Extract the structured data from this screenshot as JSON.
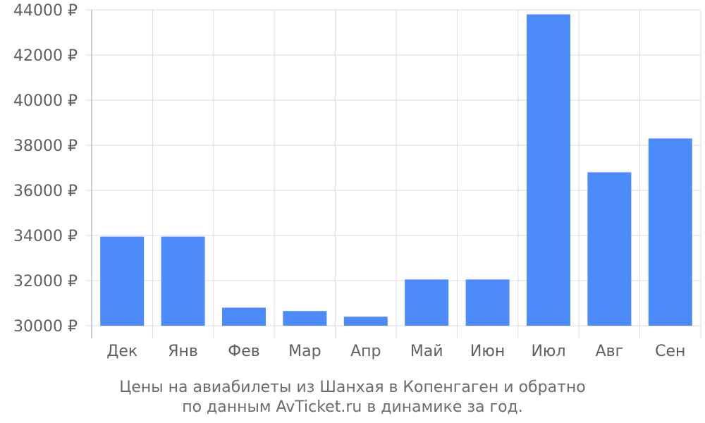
{
  "chart_data": {
    "type": "bar",
    "categories": [
      "Дек",
      "Янв",
      "Фев",
      "Мар",
      "Апр",
      "Май",
      "Июн",
      "Июл",
      "Авг",
      "Сен"
    ],
    "values": [
      33950,
      33950,
      30800,
      30650,
      30400,
      32050,
      32050,
      43800,
      36800,
      38300
    ],
    "ylim": [
      30000,
      44000
    ],
    "yticks": [
      30000,
      32000,
      34000,
      36000,
      38000,
      40000,
      42000,
      44000
    ],
    "ytick_suffix": " ₽",
    "grid": true,
    "bar_color": "#4d8bfa",
    "caption_lines": [
      "Цены на авиабилеты из Шанхая в Копенгаген и обратно",
      "по данным AvTicket.ru в динамике за год."
    ]
  }
}
